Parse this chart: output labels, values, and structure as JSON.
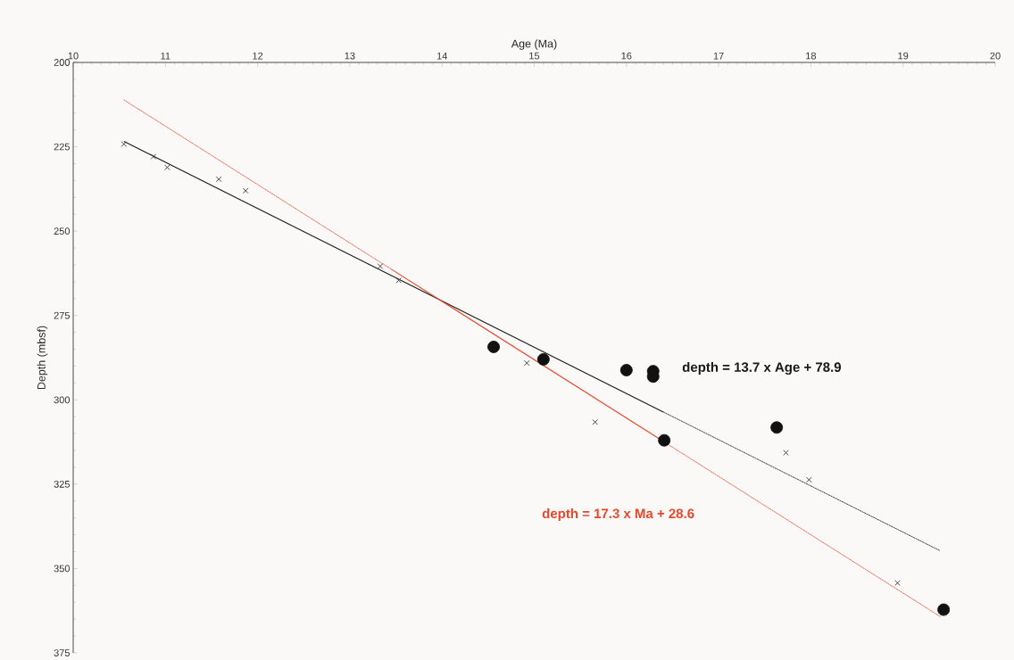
{
  "chart_data": {
    "type": "scatter",
    "xlabel": "Age (Ma)",
    "ylabel": "Depth (mbsf)",
    "xlim": [
      10,
      20
    ],
    "xticks": [
      10,
      11,
      12,
      13,
      14,
      15,
      16,
      17,
      18,
      19,
      20
    ],
    "ylim": [
      375,
      200
    ],
    "yticks": [
      200,
      225,
      250,
      275,
      300,
      325,
      350,
      375
    ],
    "series": [
      {
        "marker": "cross",
        "color": "#333333",
        "x": [
          10.55,
          10.87,
          11.02,
          11.58,
          11.87,
          13.33,
          13.53,
          14.92,
          15.66,
          17.73,
          17.98,
          18.94
        ],
        "values": [
          224.2,
          227.9,
          231.1,
          234.6,
          238.0,
          260.4,
          264.6,
          289.1,
          306.6,
          315.7,
          323.7,
          354.3
        ]
      },
      {
        "marker": "circle",
        "color": "#111111",
        "x": [
          14.56,
          15.1,
          16.0,
          16.29,
          16.29,
          16.41,
          17.63,
          19.44
        ],
        "values": [
          284.3,
          288.0,
          291.2,
          291.5,
          293.1,
          312.0,
          308.2,
          362.2
        ]
      },
      {
        "type": "line",
        "marker": "none",
        "line_style": "solid",
        "color": "#1a1a1a",
        "x": [
          10.55,
          16.4
        ],
        "values": [
          223.4,
          303.6
        ]
      },
      {
        "type": "line",
        "marker": "none",
        "line_style": "dotted",
        "color": "#1a1a1a",
        "x": [
          16.4,
          19.4
        ],
        "values": [
          303.6,
          344.7
        ]
      },
      {
        "type": "line",
        "marker": "none",
        "line_style": "solid",
        "color": "#e8472b",
        "x": [
          13.45,
          16.41
        ],
        "values": [
          261.3,
          312.5
        ]
      },
      {
        "type": "line",
        "marker": "none",
        "line_style": "dotted",
        "color": "#e8472b",
        "x": [
          10.55,
          13.45
        ],
        "values": [
          211.1,
          261.3
        ]
      },
      {
        "type": "line",
        "marker": "none",
        "line_style": "dotted",
        "color": "#e8472b",
        "x": [
          16.41,
          19.4
        ],
        "values": [
          312.5,
          364.2
        ]
      }
    ],
    "annotations": [
      "**depth = 13.7 x Age + 78.9**",
      "**depth = 17.3 x Ma + 28.6**"
    ]
  }
}
